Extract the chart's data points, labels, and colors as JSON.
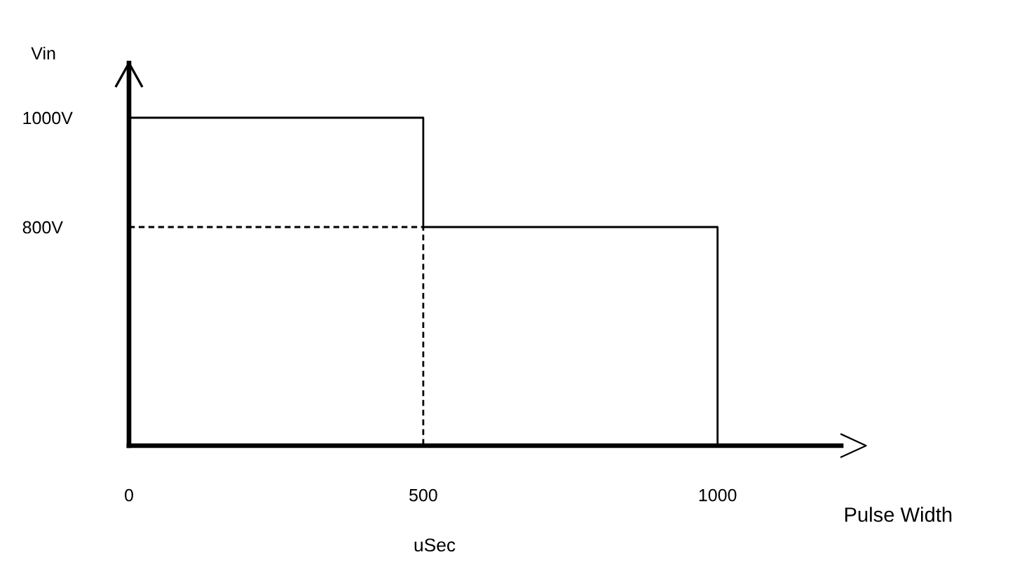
{
  "chart_data": {
    "type": "line",
    "xlabel": "Pulse Width",
    "ylabel": "Vin",
    "annotations": [
      "uSec"
    ],
    "series": [
      {
        "color": "#000000",
        "line_style": "solid",
        "x": [
          0,
          500,
          500,
          1000,
          1000
        ],
        "values": [
          1000,
          1000,
          800,
          800,
          400
        ]
      },
      {
        "color": "#000000",
        "line_style": "dashed",
        "x": [
          0,
          500,
          500
        ],
        "values": [
          800,
          800,
          400
        ]
      }
    ],
    "xlim": [
      0,
      1210
    ],
    "ylim": [
      400,
      1100
    ],
    "xticks": [
      0,
      500,
      1000
    ],
    "yticks": [
      {
        "value": 800,
        "label": "800V"
      },
      {
        "value": 1000,
        "label": "1000V"
      }
    ],
    "grid": false,
    "legend": false,
    "marker": "none"
  }
}
